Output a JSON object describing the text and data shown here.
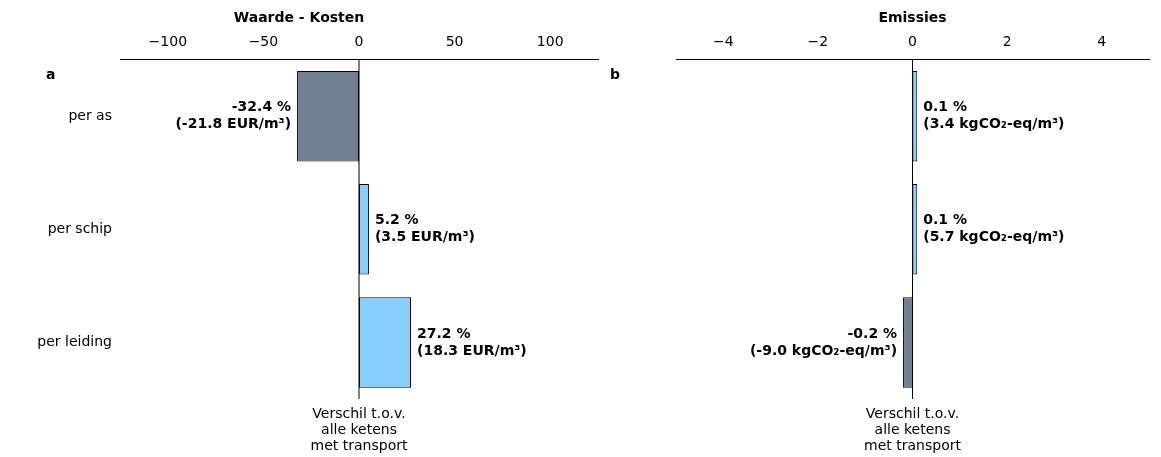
{
  "chart_data": [
    {
      "type": "bar",
      "orientation": "horizontal",
      "title": "Waarde - Kosten",
      "xlabel": "Verschil t.o.v.\nalle ketens\nmet transport",
      "categories": [
        "per as",
        "per schip",
        "per leiding"
      ],
      "values": [
        -32.4,
        5.2,
        27.2
      ],
      "colors": [
        "#708090",
        "#87cefa",
        "#87cefa"
      ],
      "value_labels": [
        "-32.4 %\n(-21.8 EUR/m³)",
        "5.2 %\n(3.5 EUR/m³)",
        "27.2 %\n(18.3 EUR/m³)"
      ],
      "xlim": [
        -125,
        125
      ],
      "xticks": [
        -100,
        -50,
        0,
        50,
        100
      ],
      "annotations": [
        "a"
      ]
    },
    {
      "type": "bar",
      "orientation": "horizontal",
      "title": "Emissies",
      "xlabel": "Verschil t.o.v.\nalle ketens\nmet transport",
      "categories": [
        null,
        null,
        null
      ],
      "values": [
        0.1,
        0.1,
        -0.2
      ],
      "colors": [
        "#87cefa",
        "#87cefa",
        "#708090"
      ],
      "value_labels": [
        "0.1 %\n(3.4 kgCO₂-eq/m³)",
        "0.1 %\n(5.7 kgCO₂-eq/m³)",
        "-0.2 %\n(-9.0 kgCO₂-eq/m³)"
      ],
      "xlim": [
        -5,
        5
      ],
      "xticks": [
        -4,
        -2,
        0,
        2,
        4
      ],
      "annotations": [
        "b"
      ],
      "tick_labels": "x"
    }
  ]
}
